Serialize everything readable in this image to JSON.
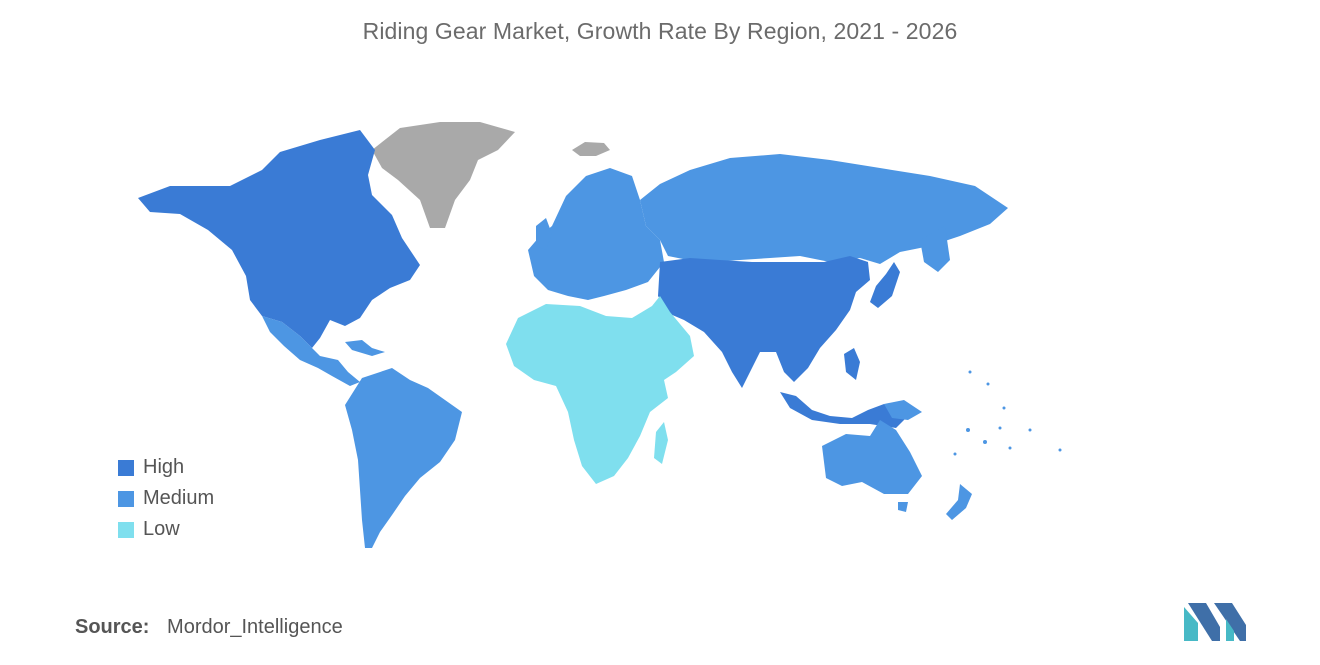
{
  "title": "Riding Gear Market, Growth Rate By Region, 2021 - 2026",
  "legend": [
    {
      "label": "High",
      "color": "#3a7bd5"
    },
    {
      "label": "Medium",
      "color": "#4d96e3"
    },
    {
      "label": "Low",
      "color": "#7fdfee"
    }
  ],
  "no_data_color": "#a9a9a9",
  "source": {
    "key": "Source:",
    "value": "Mordor_Intelligence"
  },
  "logo": {
    "icon": "mordor-intelligence-logo-icon",
    "colors": [
      "#3f6fa8",
      "#47b9c6"
    ]
  }
}
